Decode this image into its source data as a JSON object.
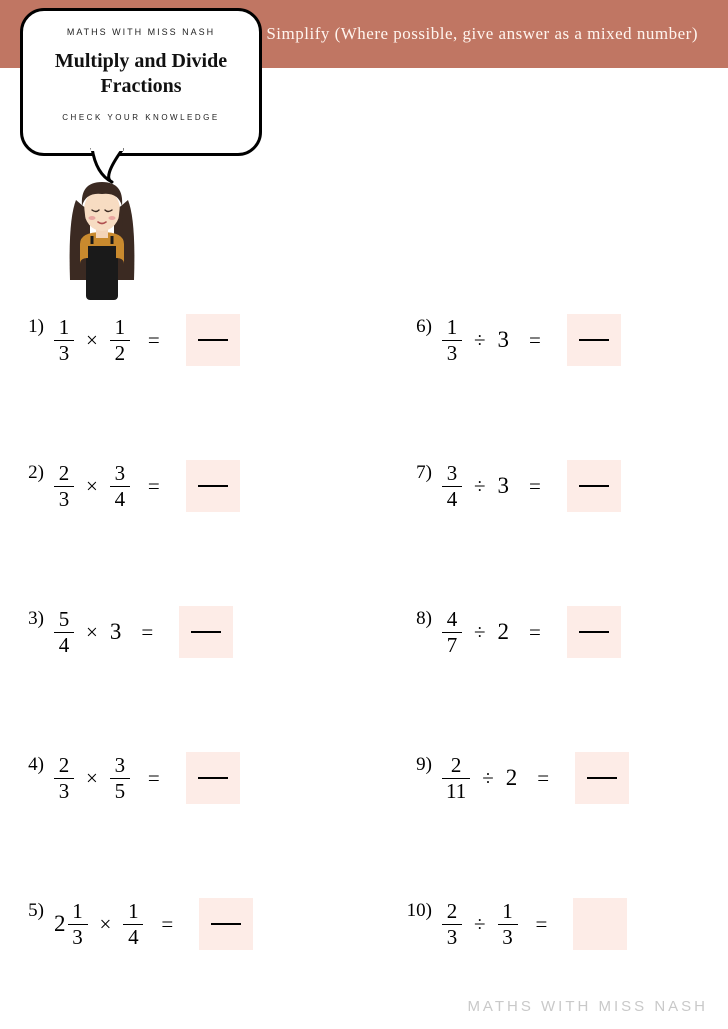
{
  "header": {
    "instruction": "Simplify (Where possible, give answer as a mixed number)",
    "band_color": "#c07663"
  },
  "bubble": {
    "brand": "MATHS WITH MISS NASH",
    "title_line1": "Multiply and Divide",
    "title_line2": "Fractions",
    "subtitle": "CHECK YOUR KNOWLEDGE"
  },
  "colors": {
    "answer_box": "#fdece7",
    "background": "#ffffff"
  },
  "problems": [
    {
      "n": "1)",
      "a": {
        "type": "frac",
        "num": "1",
        "den": "3"
      },
      "op": "×",
      "b": {
        "type": "frac",
        "num": "1",
        "den": "2"
      },
      "dash": true
    },
    {
      "n": "6)",
      "a": {
        "type": "frac",
        "num": "1",
        "den": "3"
      },
      "op": "÷",
      "b": {
        "type": "int",
        "val": "3"
      },
      "dash": true
    },
    {
      "n": "2)",
      "a": {
        "type": "frac",
        "num": "2",
        "den": "3"
      },
      "op": "×",
      "b": {
        "type": "frac",
        "num": "3",
        "den": "4"
      },
      "dash": true
    },
    {
      "n": "7)",
      "a": {
        "type": "frac",
        "num": "3",
        "den": "4"
      },
      "op": "÷",
      "b": {
        "type": "int",
        "val": "3"
      },
      "dash": true
    },
    {
      "n": "3)",
      "a": {
        "type": "frac",
        "num": "5",
        "den": "4"
      },
      "op": "×",
      "b": {
        "type": "int",
        "val": "3"
      },
      "dash": true
    },
    {
      "n": "8)",
      "a": {
        "type": "frac",
        "num": "4",
        "den": "7"
      },
      "op": "÷",
      "b": {
        "type": "int",
        "val": "2"
      },
      "dash": true
    },
    {
      "n": "4)",
      "a": {
        "type": "frac",
        "num": "2",
        "den": "3"
      },
      "op": "×",
      "b": {
        "type": "frac",
        "num": "3",
        "den": "5"
      },
      "dash": true
    },
    {
      "n": "9)",
      "a": {
        "type": "frac",
        "num": "2",
        "den": "11"
      },
      "op": "÷",
      "b": {
        "type": "int",
        "val": "2"
      },
      "dash": true
    },
    {
      "n": "5)",
      "a": {
        "type": "mixed",
        "whole": "2",
        "num": "1",
        "den": "3"
      },
      "op": "×",
      "b": {
        "type": "frac",
        "num": "1",
        "den": "4"
      },
      "dash": true
    },
    {
      "n": "10)",
      "a": {
        "type": "frac",
        "num": "2",
        "den": "3"
      },
      "op": "÷",
      "b": {
        "type": "frac",
        "num": "1",
        "den": "3"
      },
      "dash": false
    }
  ],
  "footer": "MATHS WITH MISS NASH"
}
